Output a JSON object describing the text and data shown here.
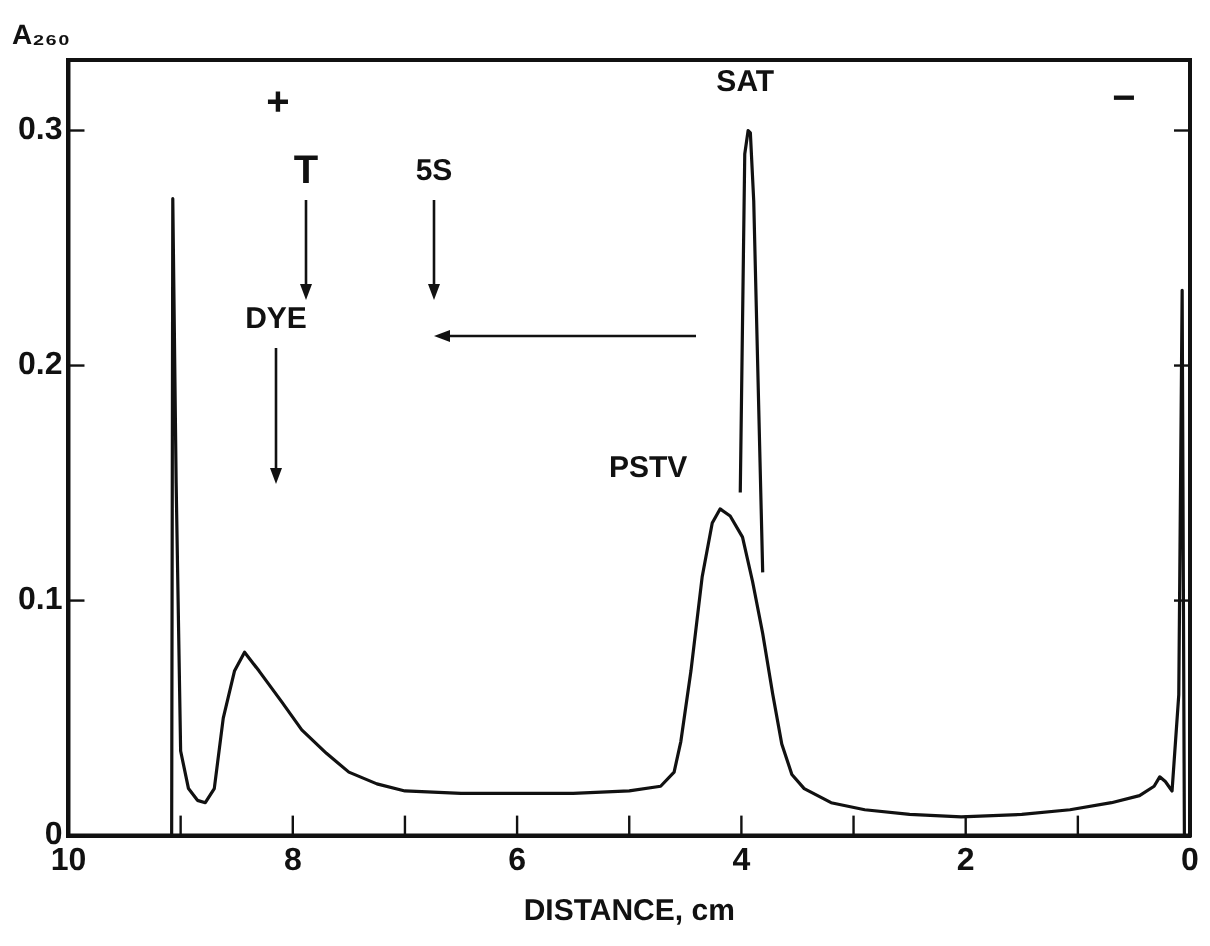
{
  "chart_data": {
    "type": "line",
    "xlabel": "DISTANCE, cm",
    "ylabel": "A₂₆₀",
    "xlim": [
      10,
      0
    ],
    "xticks": [
      10,
      {
        "value": 9,
        "label": null
      },
      8,
      {
        "value": 7,
        "label": null
      },
      6,
      {
        "value": 5,
        "label": null
      },
      4,
      {
        "value": 3,
        "label": null
      },
      2,
      {
        "value": 1,
        "label": null
      },
      0
    ],
    "ylim": [
      0,
      0.33
    ],
    "yticks": [
      0,
      0.1,
      0.2,
      0.3
    ],
    "grid": false,
    "legend": false,
    "marker": "none",
    "line_style": "solid",
    "series": [
      {
        "color": "#111111",
        "x": [
          9.08,
          9.07,
          9.04,
          9.0,
          8.93,
          8.85,
          8.78,
          8.7,
          8.62,
          8.52,
          8.43,
          8.3,
          8.1,
          7.92,
          7.7,
          7.5,
          7.25,
          7.0,
          6.5,
          6.0,
          5.5,
          5.0,
          4.72,
          4.6,
          4.54,
          4.45,
          4.35,
          4.26,
          4.19,
          4.1,
          3.99,
          3.9,
          3.81,
          3.72,
          3.64,
          3.55,
          3.44,
          3.2,
          2.9,
          2.5,
          2.04,
          1.5,
          1.07,
          0.7,
          0.45,
          0.32,
          0.27,
          0.22,
          0.16,
          0.1,
          0.07,
          0.05
        ],
        "values": [
          0,
          0.271,
          0.15,
          0.036,
          0.02,
          0.015,
          0.014,
          0.02,
          0.05,
          0.07,
          0.078,
          0.07,
          0.057,
          0.045,
          0.035,
          0.027,
          0.022,
          0.019,
          0.018,
          0.018,
          0.018,
          0.019,
          0.021,
          0.027,
          0.04,
          0.07,
          0.11,
          0.133,
          0.139,
          0.136,
          0.127,
          0.108,
          0.086,
          0.06,
          0.039,
          0.026,
          0.02,
          0.014,
          0.011,
          0.009,
          0.008,
          0.009,
          0.011,
          0.014,
          0.017,
          0.021,
          0.025,
          0.023,
          0.019,
          0.06,
          0.232,
          0
        ]
      },
      {
        "color": "#111111",
        "x": [
          4.01,
          3.97,
          3.94,
          3.92,
          3.89,
          3.81
        ],
        "values": [
          0.146,
          0.29,
          0.3,
          0.299,
          0.27,
          0.112
        ]
      }
    ],
    "annotations": [
      "+",
      "T",
      "5S",
      "DYE",
      {
        "text": "SAT",
        "x": 3.93,
        "y": 0.3
      },
      {
        "text": "PSTV",
        "x": 4.19,
        "y": 0.139
      },
      "−"
    ]
  }
}
